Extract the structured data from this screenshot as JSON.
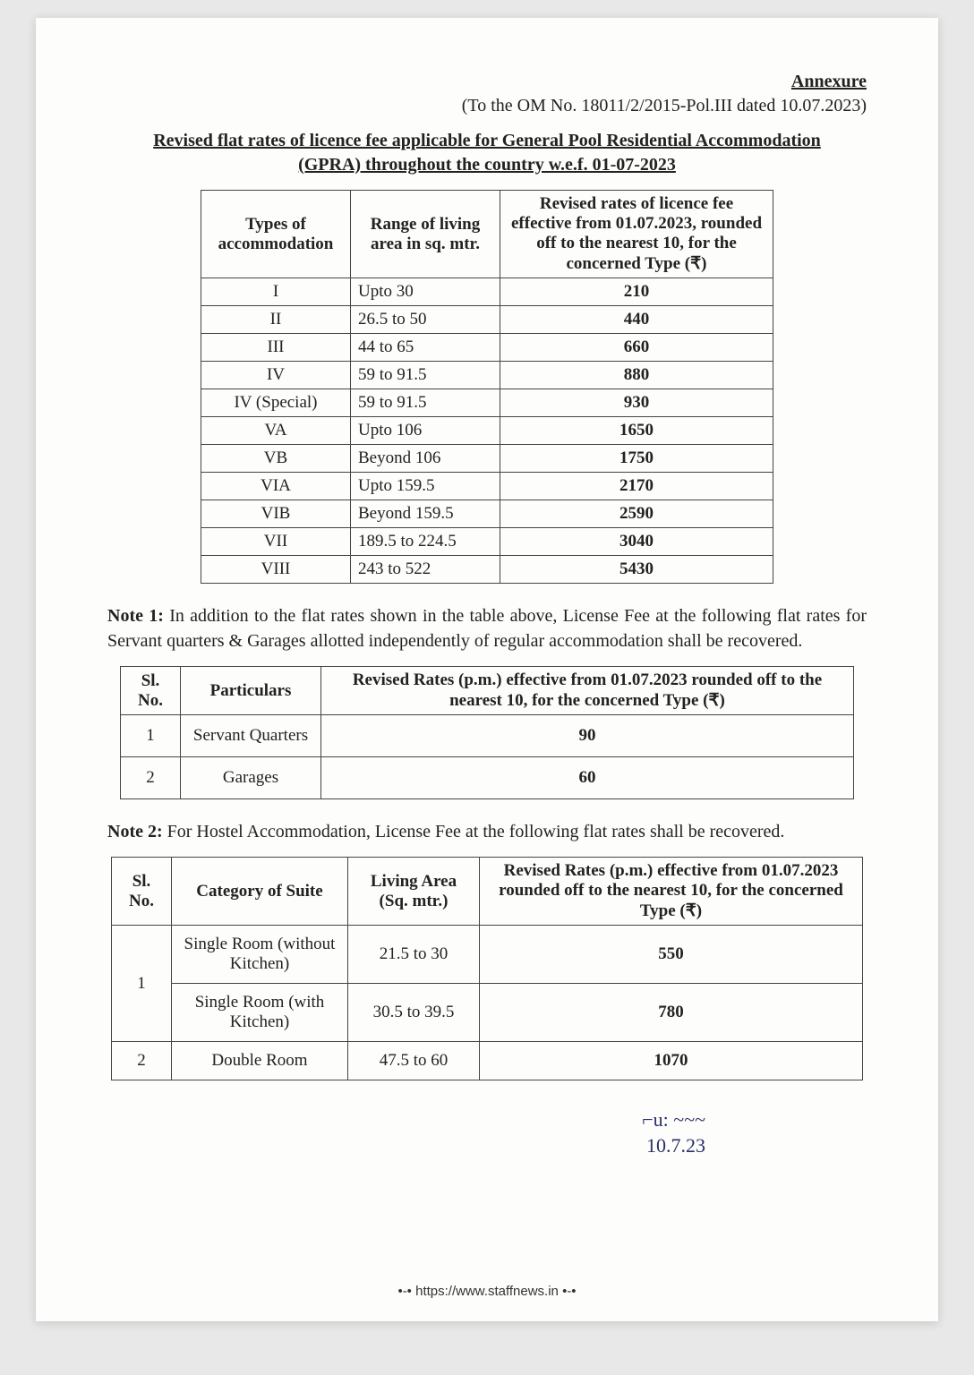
{
  "header": {
    "annex": "Annexure",
    "om_ref": "(To the OM No. 18011/2/2015-Pol.III dated 10.07.2023)",
    "title": "Revised flat rates of licence fee applicable for General Pool Residential Accommodation (GPRA) throughout the country w.e.f. 01-07-2023"
  },
  "table1": {
    "headers": {
      "c1": "Types of accommodation",
      "c2": "Range of living area in sq. mtr.",
      "c3": "Revised rates of licence fee effective from 01.07.2023, rounded off to the nearest 10, for the concerned Type (₹)"
    },
    "rows": [
      {
        "type": "I",
        "range": "Upto 30",
        "rate": "210"
      },
      {
        "type": "II",
        "range": "26.5 to 50",
        "rate": "440"
      },
      {
        "type": "III",
        "range": "44 to 65",
        "rate": "660"
      },
      {
        "type": "IV",
        "range": "59 to 91.5",
        "rate": "880"
      },
      {
        "type": "IV (Special)",
        "range": "59 to 91.5",
        "rate": "930"
      },
      {
        "type": "VA",
        "range": "Upto 106",
        "rate": "1650"
      },
      {
        "type": "VB",
        "range": "Beyond 106",
        "rate": "1750"
      },
      {
        "type": "VIA",
        "range": "Upto 159.5",
        "rate": "2170"
      },
      {
        "type": "VIB",
        "range": "Beyond 159.5",
        "rate": "2590"
      },
      {
        "type": "VII",
        "range": "189.5 to 224.5",
        "rate": "3040"
      },
      {
        "type": "VIII",
        "range": "243 to 522",
        "rate": "5430"
      }
    ]
  },
  "note1_label": "Note 1:",
  "note1_text": " In addition to the flat rates shown in the table above, License Fee at the following flat rates for Servant quarters & Garages allotted independently of regular accommodation shall be recovered.",
  "table2": {
    "headers": {
      "c1": "Sl. No.",
      "c2": "Particulars",
      "c3": "Revised Rates (p.m.) effective from 01.07.2023 rounded off to the nearest 10, for the concerned Type (₹)"
    },
    "rows": [
      {
        "sl": "1",
        "part": "Servant Quarters",
        "rate": "90"
      },
      {
        "sl": "2",
        "part": "Garages",
        "rate": "60"
      }
    ]
  },
  "note2_label": "Note 2:",
  "note2_text": " For Hostel Accommodation, License Fee at the following flat rates shall be recovered.",
  "table3": {
    "headers": {
      "c1": "Sl. No.",
      "c2": "Category of Suite",
      "c3": "Living Area (Sq. mtr.)",
      "c4": "Revised Rates (p.m.) effective from 01.07.2023  rounded off to the nearest 10, for the concerned Type (₹)"
    },
    "rows": [
      {
        "sl": "1",
        "cat": "Single Room (without Kitchen)",
        "liv": "21.5 to 30",
        "rate": "550"
      },
      {
        "sl": "",
        "cat": "Single Room (with Kitchen)",
        "liv": "30.5 to 39.5",
        "rate": "780"
      },
      {
        "sl": "2",
        "cat": "Double Room",
        "liv": "47.5 to 60",
        "rate": "1070"
      }
    ]
  },
  "signature": {
    "line1": "⌐u: ~~~",
    "line2": "10.7.23"
  },
  "footer": "•-• https://www.staffnews.in •-•"
}
